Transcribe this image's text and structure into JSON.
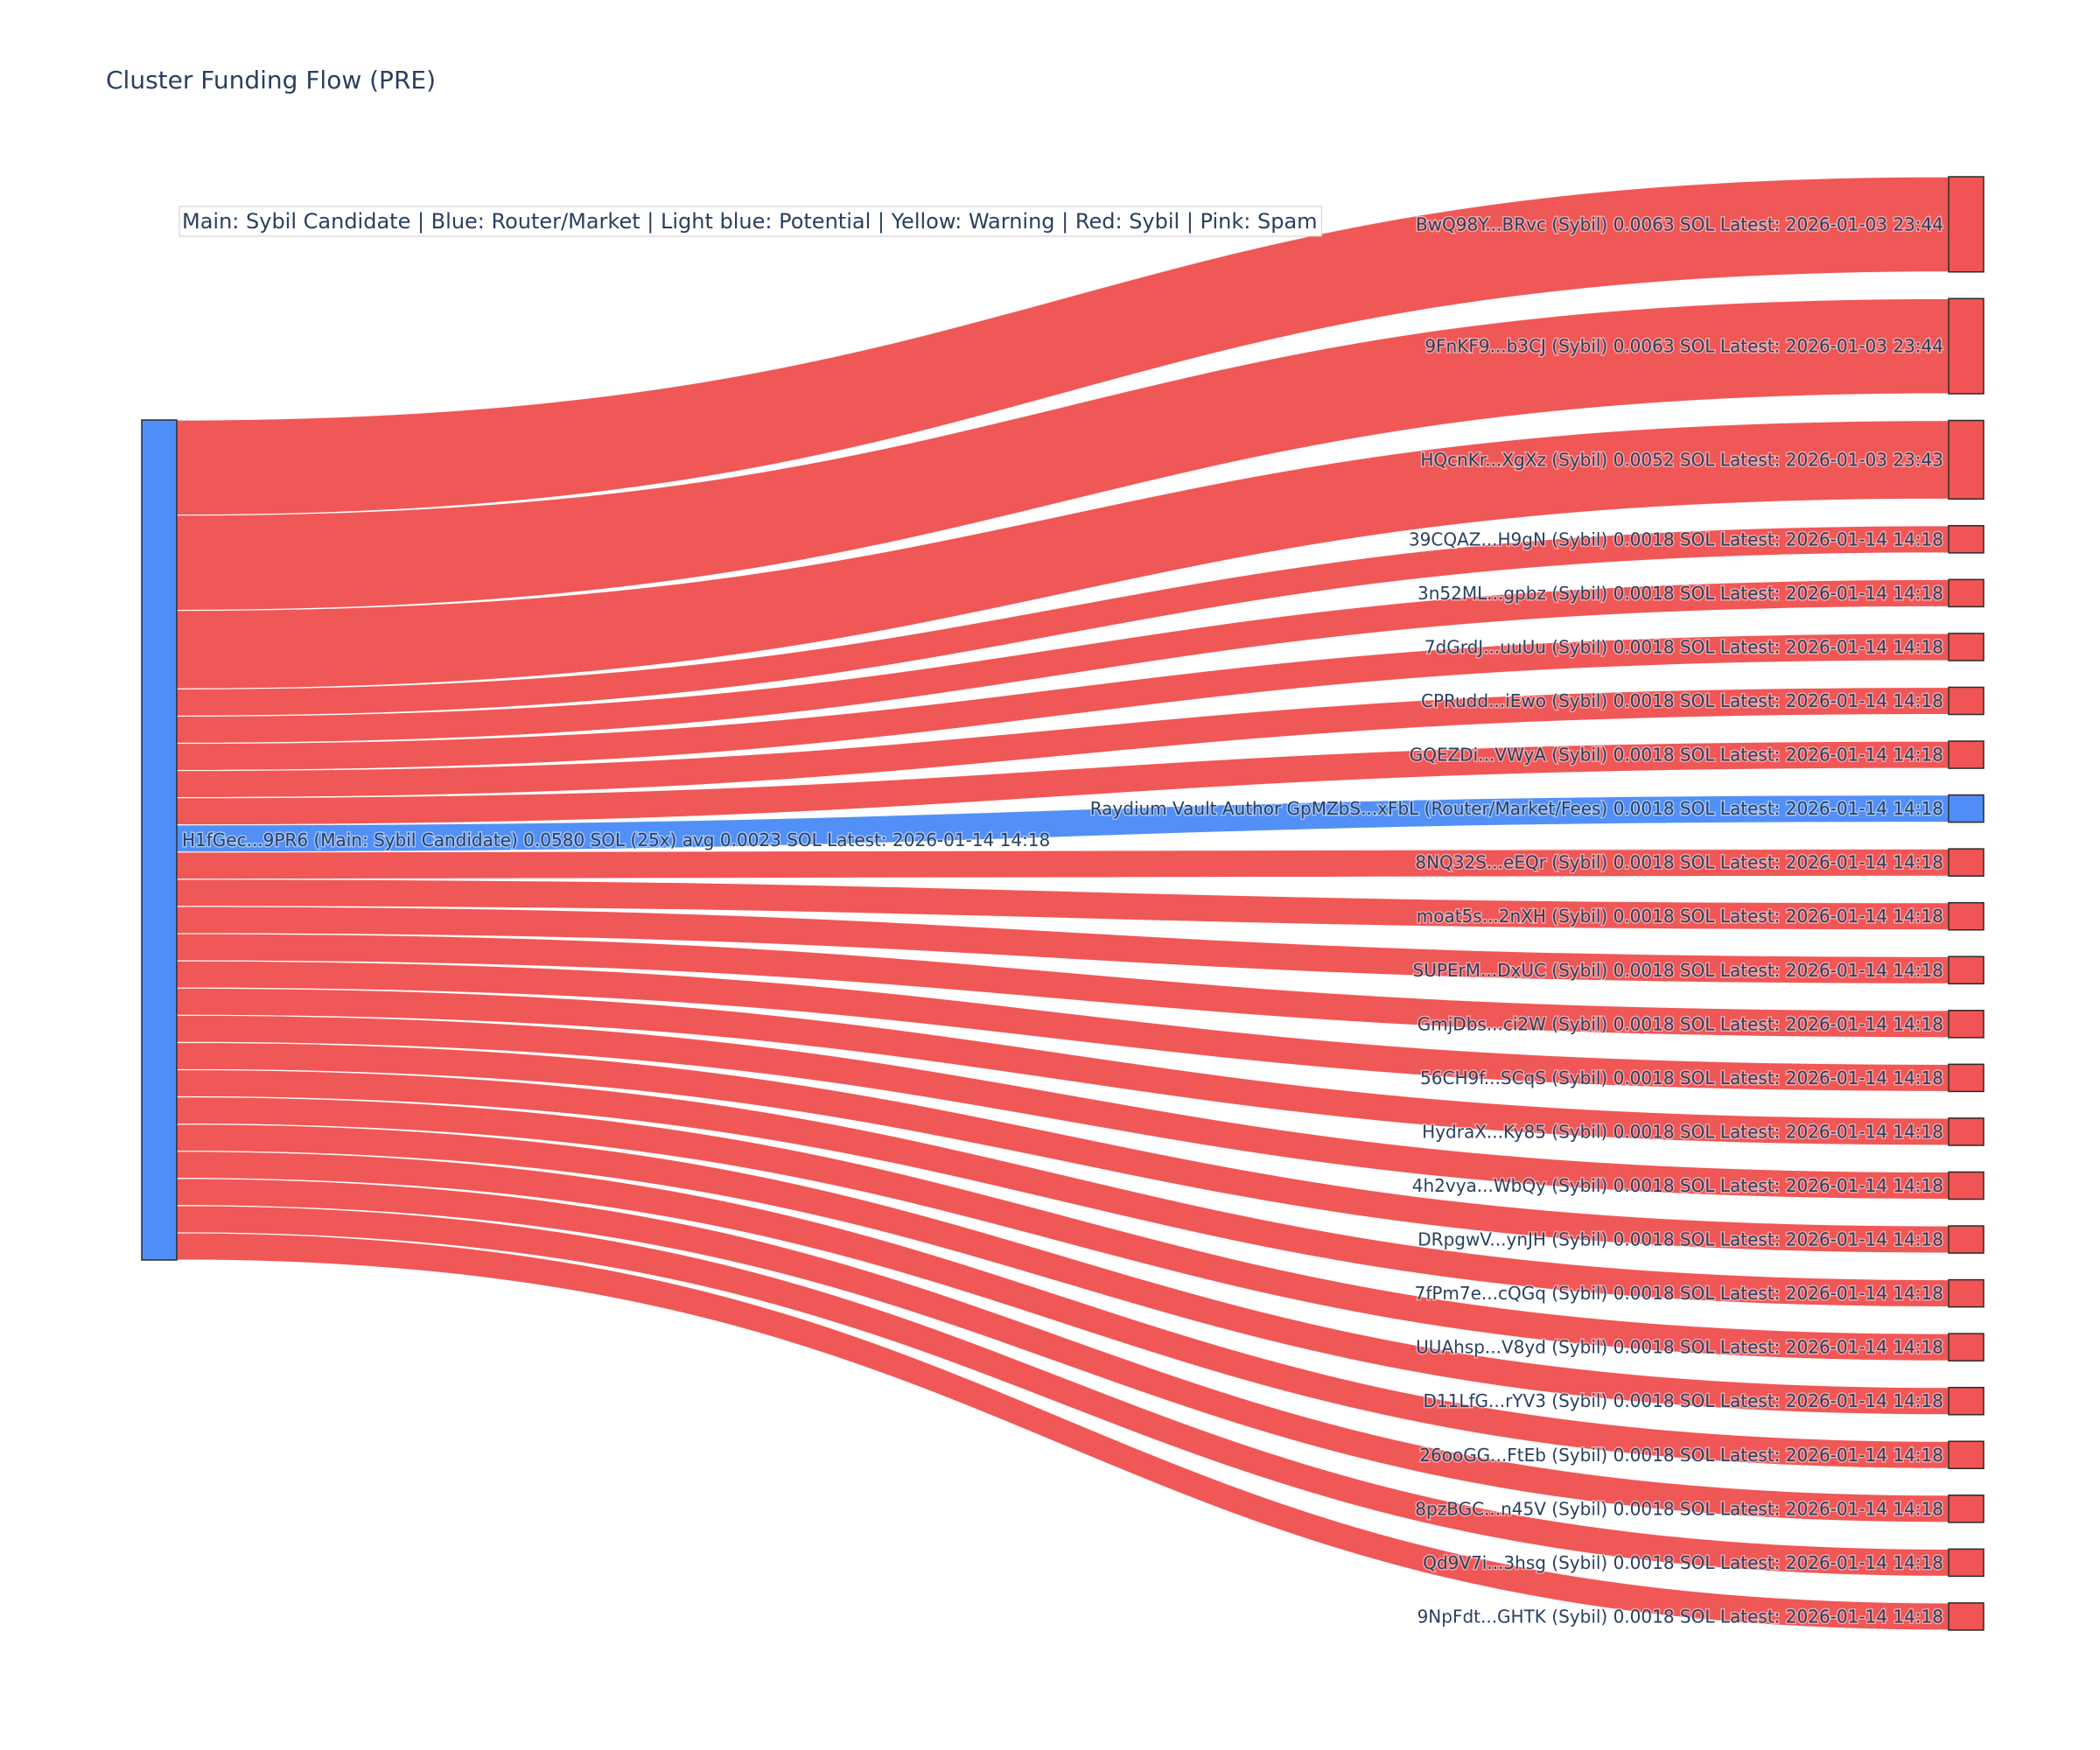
{
  "colors": {
    "router": "#4f8ef7",
    "sybil": "#f05454",
    "node_stroke": "#2a2a2a",
    "text": "#2a3f5f"
  },
  "chart_data": {
    "type": "sankey",
    "title": "Cluster Funding Flow (PRE)",
    "legend_note": "Main: Sybil Candidate  |  Blue: Router/Market | Light blue: Potential | Yellow: Warning | Red: Sybil | Pink: Spam",
    "source": {
      "label": "H1fGec...9PR6 (Main: Sybil Candidate) 0.0580 SOL (25x) avg 0.0023 SOL Latest: 2026-01-14 14:18",
      "category": "router",
      "value": 0.058
    },
    "targets": [
      {
        "label": "BwQ98Y...BRvc (Sybil) 0.0063 SOL Latest: 2026-01-03 23:44",
        "value": 0.0063,
        "category": "sybil"
      },
      {
        "label": "9FnKF9...b3CJ (Sybil) 0.0063 SOL Latest: 2026-01-03 23:44",
        "value": 0.0063,
        "category": "sybil"
      },
      {
        "label": "HQcnKr...XgXz (Sybil) 0.0052 SOL Latest: 2026-01-03 23:43",
        "value": 0.0052,
        "category": "sybil"
      },
      {
        "label": "39CQAZ...H9gN (Sybil) 0.0018 SOL Latest: 2026-01-14 14:18",
        "value": 0.0018,
        "category": "sybil"
      },
      {
        "label": "3n52ML...gpbz (Sybil) 0.0018 SOL Latest: 2026-01-14 14:18",
        "value": 0.0018,
        "category": "sybil"
      },
      {
        "label": "7dGrdJ...uuUu (Sybil) 0.0018 SOL Latest: 2026-01-14 14:18",
        "value": 0.0018,
        "category": "sybil"
      },
      {
        "label": "CPRudd...iEwo (Sybil) 0.0018 SOL Latest: 2026-01-14 14:18",
        "value": 0.0018,
        "category": "sybil"
      },
      {
        "label": "GQEZDi...VWyA (Sybil) 0.0018 SOL Latest: 2026-01-14 14:18",
        "value": 0.0018,
        "category": "sybil"
      },
      {
        "label": "Raydium Vault Author GpMZbS...xFbL (Router/Market/Fees) 0.0018 SOL Latest: 2026-01-14 14:18",
        "value": 0.0018,
        "category": "router"
      },
      {
        "label": "8NQ32S...eEQr (Sybil) 0.0018 SOL Latest: 2026-01-14 14:18",
        "value": 0.0018,
        "category": "sybil"
      },
      {
        "label": "moat5s...2nXH (Sybil) 0.0018 SOL Latest: 2026-01-14 14:18",
        "value": 0.0018,
        "category": "sybil"
      },
      {
        "label": "SUPErM...DxUC (Sybil) 0.0018 SOL Latest: 2026-01-14 14:18",
        "value": 0.0018,
        "category": "sybil"
      },
      {
        "label": "GmjDbs...ci2W (Sybil) 0.0018 SOL Latest: 2026-01-14 14:18",
        "value": 0.0018,
        "category": "sybil"
      },
      {
        "label": "56CH9f...SCqS (Sybil) 0.0018 SOL Latest: 2026-01-14 14:18",
        "value": 0.0018,
        "category": "sybil"
      },
      {
        "label": "HydraX...Ky85 (Sybil) 0.0018 SOL Latest: 2026-01-14 14:18",
        "value": 0.0018,
        "category": "sybil"
      },
      {
        "label": "4h2vya...WbQy (Sybil) 0.0018 SOL Latest: 2026-01-14 14:18",
        "value": 0.0018,
        "category": "sybil"
      },
      {
        "label": "DRpgwV...ynJH (Sybil) 0.0018 SOL Latest: 2026-01-14 14:18",
        "value": 0.0018,
        "category": "sybil"
      },
      {
        "label": "7fPm7e...cQGq (Sybil) 0.0018 SOL Latest: 2026-01-14 14:18",
        "value": 0.0018,
        "category": "sybil"
      },
      {
        "label": "UUAhsp...V8yd (Sybil) 0.0018 SOL Latest: 2026-01-14 14:18",
        "value": 0.0018,
        "category": "sybil"
      },
      {
        "label": "D11LfG...rYV3 (Sybil) 0.0018 SOL Latest: 2026-01-14 14:18",
        "value": 0.0018,
        "category": "sybil"
      },
      {
        "label": "26ooGG...FtEb (Sybil) 0.0018 SOL Latest: 2026-01-14 14:18",
        "value": 0.0018,
        "category": "sybil"
      },
      {
        "label": "8pzBGC...n45V (Sybil) 0.0018 SOL Latest: 2026-01-14 14:18",
        "value": 0.0018,
        "category": "sybil"
      },
      {
        "label": "Qd9V7i...3hsg (Sybil) 0.0018 SOL Latest: 2026-01-14 14:18",
        "value": 0.0018,
        "category": "sybil"
      },
      {
        "label": "9NpFdt...GHTK (Sybil) 0.0018 SOL Latest: 2026-01-14 14:18",
        "value": 0.0018,
        "category": "sybil"
      }
    ]
  }
}
